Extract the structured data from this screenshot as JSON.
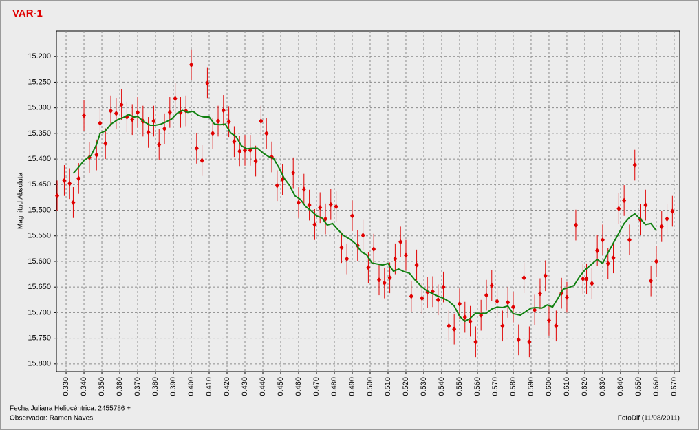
{
  "chart_data": {
    "type": "scatter",
    "title": "VAR-1",
    "ylabel": "Magnitud Absoluta",
    "footer": [
      "Fecha Juliana Heliocéntrica: 2455786 +",
      "Observador: Ramon Naves"
    ],
    "credit": "FotoDif (11/08/2011)",
    "xlim": [
      0.3246,
      0.6731
    ],
    "xticks": [
      {
        "value": 0.33,
        "label": "0.330"
      },
      {
        "value": 0.34,
        "label": "0.340"
      },
      {
        "value": 0.35,
        "label": "0.350"
      },
      {
        "value": 0.36,
        "label": "0.360"
      },
      {
        "value": 0.37,
        "label": "0.370"
      },
      {
        "value": 0.38,
        "label": "0.380"
      },
      {
        "value": 0.39,
        "label": "0.390"
      },
      {
        "value": 0.4,
        "label": "0.400"
      },
      {
        "value": 0.41,
        "label": "0.410"
      },
      {
        "value": 0.42,
        "label": "0.420"
      },
      {
        "value": 0.43,
        "label": "0.430"
      },
      {
        "value": 0.44,
        "label": "0.440"
      },
      {
        "value": 0.45,
        "label": "0.450"
      },
      {
        "value": 0.46,
        "label": "0.460"
      },
      {
        "value": 0.47,
        "label": "0.470"
      },
      {
        "value": 0.48,
        "label": "0.480"
      },
      {
        "value": 0.49,
        "label": "0.490"
      },
      {
        "value": 0.5,
        "label": "0.500"
      },
      {
        "value": 0.51,
        "label": "0.510"
      },
      {
        "value": 0.52,
        "label": "0.520"
      },
      {
        "value": 0.53,
        "label": "0.530"
      },
      {
        "value": 0.54,
        "label": "0.540"
      },
      {
        "value": 0.55,
        "label": "0.550"
      },
      {
        "value": 0.56,
        "label": "0.560"
      },
      {
        "value": 0.57,
        "label": "0.570"
      },
      {
        "value": 0.58,
        "label": "0.580"
      },
      {
        "value": 0.59,
        "label": "0.590"
      },
      {
        "value": 0.6,
        "label": "0.600"
      },
      {
        "value": 0.61,
        "label": "0.610"
      },
      {
        "value": 0.62,
        "label": "0.620"
      },
      {
        "value": 0.63,
        "label": "0.630"
      },
      {
        "value": 0.64,
        "label": "0.640"
      },
      {
        "value": 0.65,
        "label": "0.650"
      },
      {
        "value": 0.66,
        "label": "0.660"
      },
      {
        "value": 0.67,
        "label": "0.670"
      }
    ],
    "ylim": [
      15.15,
      15.815
    ],
    "y_inverted": true,
    "yticks": [
      {
        "value": 15.2,
        "label": "15.200"
      },
      {
        "value": 15.25,
        "label": "15.250"
      },
      {
        "value": 15.3,
        "label": "15.300"
      },
      {
        "value": 15.35,
        "label": "15.350"
      },
      {
        "value": 15.4,
        "label": "15.400"
      },
      {
        "value": 15.45,
        "label": "15.450"
      },
      {
        "value": 15.5,
        "label": "15.500"
      },
      {
        "value": 15.55,
        "label": "15.550"
      },
      {
        "value": 15.6,
        "label": "15.600"
      },
      {
        "value": 15.65,
        "label": "15.650"
      },
      {
        "value": 15.7,
        "label": "15.700"
      },
      {
        "value": 15.75,
        "label": "15.750"
      },
      {
        "value": 15.8,
        "label": "15.800"
      }
    ],
    "grid": true,
    "series": [
      {
        "type": "scatter",
        "marker": "diamond",
        "color": "#e00000",
        "x": [
          0.325,
          0.329,
          0.332,
          0.334,
          0.337,
          0.34,
          0.343,
          0.347,
          0.349,
          0.352,
          0.355,
          0.358,
          0.361,
          0.364,
          0.367,
          0.37,
          0.373,
          0.376,
          0.379,
          0.382,
          0.385,
          0.388,
          0.391,
          0.394,
          0.397,
          0.4,
          0.403,
          0.406,
          0.409,
          0.412,
          0.415,
          0.418,
          0.421,
          0.424,
          0.427,
          0.43,
          0.433,
          0.436,
          0.439,
          0.442,
          0.445,
          0.448,
          0.451,
          0.457,
          0.46,
          0.463,
          0.466,
          0.469,
          0.472,
          0.475,
          0.478,
          0.481,
          0.484,
          0.487,
          0.49,
          0.493,
          0.496,
          0.499,
          0.502,
          0.505,
          0.508,
          0.511,
          0.514,
          0.517,
          0.52,
          0.523,
          0.526,
          0.529,
          0.532,
          0.535,
          0.538,
          0.541,
          0.544,
          0.547,
          0.55,
          0.553,
          0.556,
          0.559,
          0.562,
          0.565,
          0.568,
          0.571,
          0.574,
          0.577,
          0.58,
          0.583,
          0.586,
          0.589,
          0.592,
          0.595,
          0.598,
          0.6,
          0.604,
          0.607,
          0.61,
          0.615,
          0.619,
          0.621,
          0.624,
          0.627,
          0.63,
          0.633,
          0.636,
          0.639,
          0.642,
          0.645,
          0.648,
          0.651,
          0.654,
          0.657,
          0.66,
          0.663,
          0.666,
          0.669
        ],
        "values": [
          15.472,
          15.442,
          15.448,
          15.485,
          15.438,
          15.315,
          15.397,
          15.392,
          15.33,
          15.37,
          15.306,
          15.311,
          15.294,
          15.318,
          15.323,
          15.309,
          15.326,
          15.348,
          15.326,
          15.372,
          15.341,
          15.309,
          15.282,
          15.309,
          15.306,
          15.216,
          15.379,
          15.403,
          15.252,
          15.35,
          15.326,
          15.305,
          15.327,
          15.366,
          15.385,
          15.383,
          15.383,
          15.404,
          15.326,
          15.35,
          15.396,
          15.452,
          15.44,
          15.427,
          15.485,
          15.459,
          15.49,
          15.528,
          15.495,
          15.517,
          15.489,
          15.493,
          15.573,
          15.595,
          15.511,
          15.569,
          15.549,
          15.612,
          15.576,
          15.636,
          15.642,
          15.632,
          15.595,
          15.562,
          15.588,
          15.668,
          15.607,
          15.672,
          15.66,
          15.659,
          15.675,
          15.65,
          15.726,
          15.732,
          15.683,
          15.709,
          15.717,
          15.757,
          15.705,
          15.666,
          15.647,
          15.678,
          15.726,
          15.68,
          15.689,
          15.753,
          15.632,
          15.757,
          15.695,
          15.663,
          15.628,
          15.715,
          15.726,
          15.662,
          15.67,
          15.529,
          15.634,
          15.634,
          15.643,
          15.579,
          15.558,
          15.604,
          15.593,
          15.497,
          15.481,
          15.558,
          15.412,
          15.518,
          15.49,
          15.638,
          15.6,
          15.532,
          15.517,
          15.502
        ],
        "errors": [
          0.03,
          0.03,
          0.03,
          0.03,
          0.03,
          0.03,
          0.03,
          0.03,
          0.03,
          0.03,
          0.03,
          0.03,
          0.03,
          0.03,
          0.03,
          0.03,
          0.03,
          0.03,
          0.03,
          0.03,
          0.03,
          0.03,
          0.03,
          0.03,
          0.03,
          0.03,
          0.03,
          0.03,
          0.03,
          0.03,
          0.03,
          0.03,
          0.03,
          0.03,
          0.03,
          0.03,
          0.03,
          0.03,
          0.03,
          0.03,
          0.03,
          0.03,
          0.03,
          0.03,
          0.03,
          0.03,
          0.03,
          0.03,
          0.03,
          0.03,
          0.03,
          0.03,
          0.03,
          0.03,
          0.03,
          0.03,
          0.03,
          0.03,
          0.03,
          0.03,
          0.03,
          0.03,
          0.03,
          0.03,
          0.03,
          0.03,
          0.03,
          0.03,
          0.03,
          0.03,
          0.03,
          0.03,
          0.03,
          0.03,
          0.03,
          0.03,
          0.03,
          0.03,
          0.03,
          0.03,
          0.03,
          0.03,
          0.03,
          0.03,
          0.03,
          0.03,
          0.03,
          0.03,
          0.03,
          0.03,
          0.03,
          0.03,
          0.03,
          0.03,
          0.03,
          0.03,
          0.03,
          0.03,
          0.03,
          0.03,
          0.03,
          0.03,
          0.03,
          0.03,
          0.03,
          0.03,
          0.03,
          0.03,
          0.03,
          0.03,
          0.03,
          0.03,
          0.03,
          0.03
        ]
      },
      {
        "type": "line",
        "color": "#108010",
        "x": [
          0.334,
          0.337,
          0.34,
          0.344,
          0.347,
          0.349,
          0.352,
          0.355,
          0.359,
          0.362,
          0.365,
          0.368,
          0.37,
          0.374,
          0.377,
          0.38,
          0.383,
          0.385,
          0.389,
          0.392,
          0.395,
          0.398,
          0.401,
          0.404,
          0.407,
          0.41,
          0.413,
          0.416,
          0.419,
          0.422,
          0.425,
          0.428,
          0.431,
          0.434,
          0.437,
          0.44,
          0.443,
          0.446,
          0.449,
          0.452,
          0.455,
          0.458,
          0.461,
          0.464,
          0.467,
          0.47,
          0.473,
          0.476,
          0.479,
          0.482,
          0.485,
          0.489,
          0.492,
          0.495,
          0.498,
          0.501,
          0.504,
          0.507,
          0.51,
          0.513,
          0.516,
          0.519,
          0.522,
          0.525,
          0.529,
          0.532,
          0.535,
          0.538,
          0.541,
          0.544,
          0.547,
          0.55,
          0.553,
          0.556,
          0.559,
          0.562,
          0.565,
          0.568,
          0.571,
          0.574,
          0.577,
          0.58,
          0.584,
          0.587,
          0.59,
          0.593,
          0.596,
          0.599,
          0.602,
          0.605,
          0.608,
          0.611,
          0.614,
          0.617,
          0.62,
          0.624,
          0.627,
          0.63,
          0.633,
          0.636,
          0.639,
          0.642,
          0.645,
          0.648,
          0.651,
          0.654,
          0.657,
          0.66
        ],
        "values": [
          15.428,
          15.416,
          15.403,
          15.393,
          15.372,
          15.35,
          15.345,
          15.332,
          15.323,
          15.319,
          15.313,
          15.318,
          15.317,
          15.328,
          15.334,
          15.334,
          15.332,
          15.329,
          15.322,
          15.311,
          15.305,
          15.309,
          15.307,
          15.315,
          15.318,
          15.318,
          15.332,
          15.333,
          15.332,
          15.349,
          15.356,
          15.374,
          15.38,
          15.379,
          15.379,
          15.388,
          15.395,
          15.399,
          15.417,
          15.438,
          15.452,
          15.472,
          15.479,
          15.493,
          15.501,
          15.511,
          15.515,
          15.529,
          15.526,
          15.538,
          15.549,
          15.557,
          15.566,
          15.581,
          15.587,
          15.603,
          15.605,
          15.607,
          15.604,
          15.619,
          15.615,
          15.62,
          15.623,
          15.636,
          15.65,
          15.658,
          15.663,
          15.668,
          15.672,
          15.678,
          15.687,
          15.707,
          15.717,
          15.711,
          15.701,
          15.702,
          15.701,
          15.693,
          15.689,
          15.69,
          15.687,
          15.702,
          15.705,
          15.698,
          15.691,
          15.69,
          15.691,
          15.685,
          15.689,
          15.672,
          15.654,
          15.651,
          15.647,
          15.63,
          15.617,
          15.605,
          15.596,
          15.604,
          15.583,
          15.564,
          15.545,
          15.526,
          15.514,
          15.507,
          15.517,
          15.528,
          15.526,
          15.54
        ]
      }
    ]
  }
}
